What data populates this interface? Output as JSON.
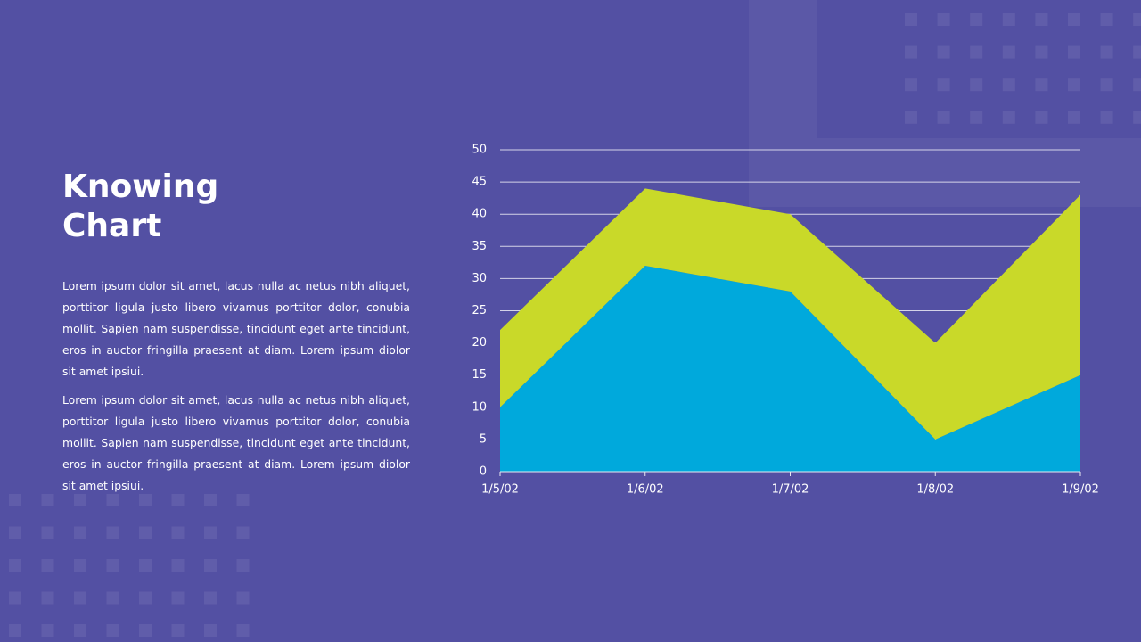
{
  "header": {
    "title": "Knowing Chart"
  },
  "body": {
    "paragraphs": [
      "Lorem ipsum dolor sit amet, lacus nulla ac netus nibh aliquet, porttitor ligula justo libero vivamus porttitor dolor, conubia mollit. Sapien nam suspendisse, tincidunt eget ante tincidunt, eros in auctor fringilla praesent at diam. Lorem ipsum diolor sit amet ipsiui.",
      "Lorem ipsum dolor sit amet, lacus nulla ac netus nibh aliquet, porttitor ligula justo libero vivamus porttitor dolor, conubia mollit. Sapien nam suspendisse, tincidunt eget ante tincidunt, eros in auctor fringilla praesent at diam. Lorem ipsum diolor sit amet ipsiui."
    ]
  },
  "chart_data": {
    "type": "stacked-area",
    "categories": [
      "1/5/02",
      "1/6/02",
      "1/7/02",
      "1/8/02",
      "1/9/02"
    ],
    "series": [
      {
        "color": "#00a9dc",
        "values": [
          10,
          32,
          28,
          5,
          15
        ]
      },
      {
        "color": "#c9d929",
        "values": [
          12,
          12,
          12,
          15,
          28
        ]
      }
    ],
    "ylim": [
      0,
      50
    ],
    "yticks": [
      0,
      5,
      10,
      15,
      20,
      25,
      30,
      35,
      40,
      45,
      50
    ],
    "grid": true
  }
}
